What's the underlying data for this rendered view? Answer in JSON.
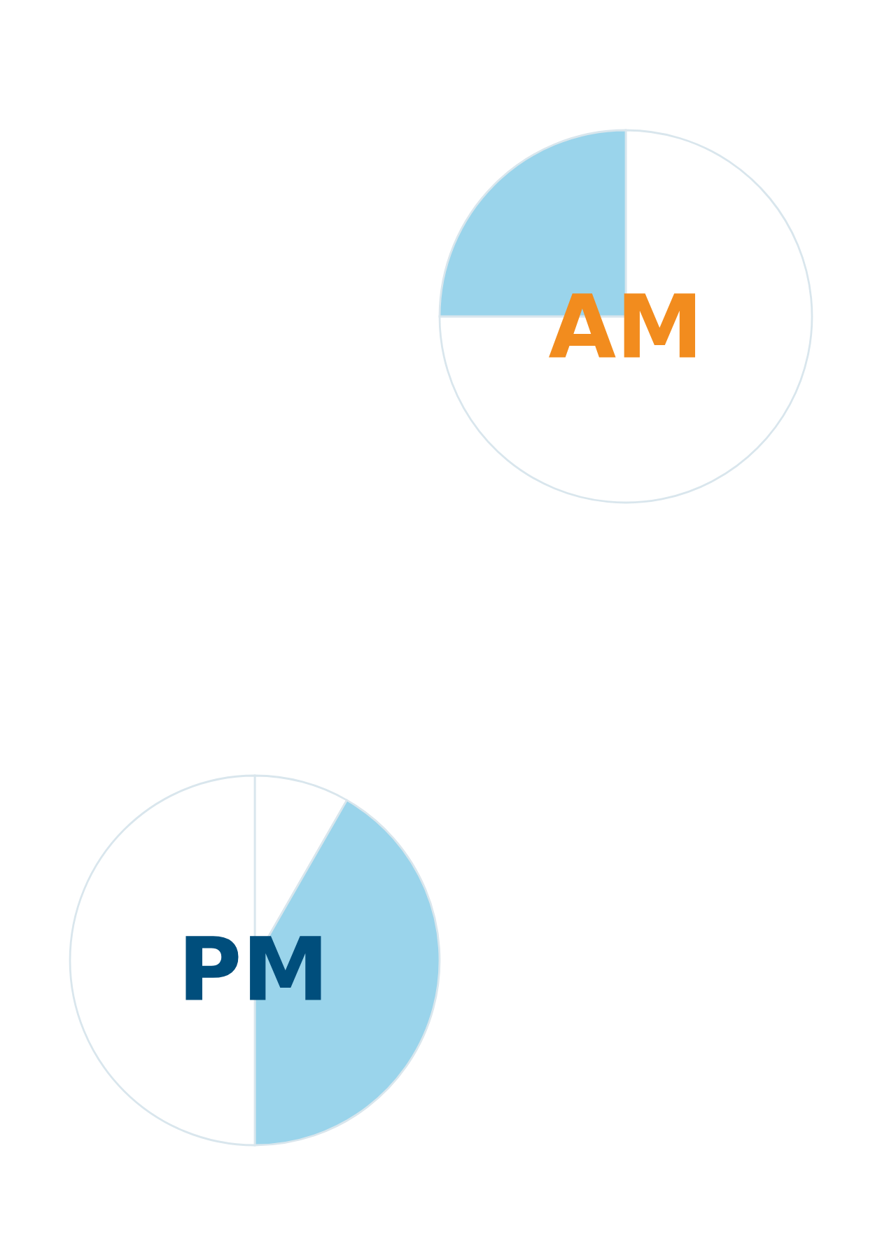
{
  "chart_data": [
    {
      "type": "pie",
      "title": "AM",
      "categories": [
        null,
        null
      ],
      "values": [
        75,
        25
      ],
      "colors": [
        "#ffffff",
        "#9ad4eb"
      ]
    },
    {
      "type": "pie",
      "title": "PM",
      "categories": [
        null,
        null,
        null
      ],
      "values": [
        8.3,
        41.7,
        50
      ],
      "colors": [
        "#ffffff",
        "#9ad4eb",
        "#ffffff"
      ]
    }
  ]
}
